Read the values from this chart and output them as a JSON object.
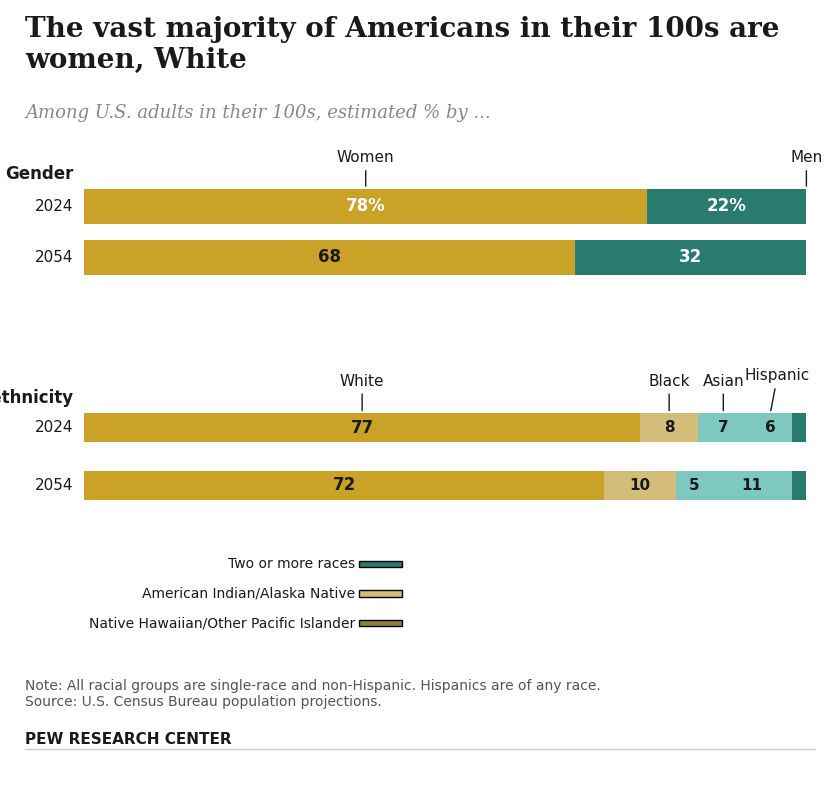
{
  "title": "The vast majority of Americans in their 100s are\nwomen, White",
  "subtitle": "Among U.S. adults in their 100s, estimated % by ...",
  "note": "Note: All racial groups are single-race and non-Hispanic. Hispanics are of any race.\nSource: U.S. Census Bureau population projections.",
  "footer": "PEW RESEARCH CENTER",
  "gender_label": "Gender",
  "race_label": "Race/ethnicity",
  "gender_years": [
    "2024",
    "2054"
  ],
  "gender_data": {
    "2024": {
      "Women": 78,
      "Men": 22
    },
    "2054": {
      "Women": 68,
      "Men": 32
    }
  },
  "race_years": [
    "2024",
    "2054"
  ],
  "race_data": {
    "2024": {
      "White": 77,
      "Black": 8,
      "Asian": 7,
      "Hispanic": 6,
      "Other": 2
    },
    "2054": {
      "White": 72,
      "Black": 10,
      "Asian": 5,
      "Hispanic": 11,
      "Other": 2
    }
  },
  "gender_labels_display": {
    "2024": {
      "Women": "78%",
      "Men": "22%"
    },
    "2054": {
      "Women": "68",
      "Men": "32"
    }
  },
  "race_labels_display": {
    "2024": {
      "White": "77",
      "Black": "8",
      "Asian": "7",
      "Hispanic": "6"
    },
    "2054": {
      "White": "72",
      "Black": "10",
      "Asian": "5",
      "Hispanic": "11"
    }
  },
  "color_women": "#C9A227",
  "color_men": "#2A7B6F",
  "color_white": "#C9A227",
  "color_black": "#D4BC7A",
  "color_asian": "#7EC8C0",
  "color_hispanic": "#7EC8C0",
  "color_two_more": "#2A7B6F",
  "color_aian": "#D4BC7A",
  "color_nhopi": "#8B8040",
  "legend_items": [
    {
      "label": "Two or more races",
      "color": "#2A7B6F"
    },
    {
      "label": "American Indian/Alaska Native",
      "color": "#D4BC7A"
    },
    {
      "label": "Native Hawaiian/Other Pacific Islander",
      "color": "#8B8040"
    }
  ],
  "background_color": "#FFFFFF"
}
